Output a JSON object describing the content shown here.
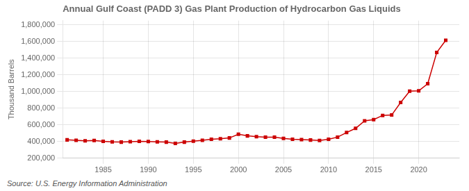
{
  "chart_data": {
    "type": "line",
    "title": "Annual Gulf Coast (PADD 3) Gas Plant Production of Hydrocarbon Gas Liquids",
    "ylabel": "Thousand Barrels",
    "annotation": "Source: U.S. Energy Information Administration",
    "x": [
      1981,
      1982,
      1983,
      1984,
      1985,
      1986,
      1987,
      1988,
      1989,
      1990,
      1991,
      1992,
      1993,
      1994,
      1995,
      1996,
      1997,
      1998,
      1999,
      2000,
      2001,
      2002,
      2003,
      2004,
      2005,
      2006,
      2007,
      2008,
      2009,
      2010,
      2011,
      2012,
      2013,
      2014,
      2015,
      2016,
      2017,
      2018,
      2019,
      2020,
      2021,
      2022,
      2023
    ],
    "values": [
      420000,
      415000,
      408000,
      412000,
      403000,
      396000,
      393000,
      398000,
      403000,
      400000,
      396000,
      393000,
      378000,
      393000,
      405000,
      415000,
      428000,
      433000,
      443000,
      488000,
      468000,
      458000,
      453000,
      453000,
      438000,
      428000,
      423000,
      418000,
      413000,
      428000,
      453000,
      508000,
      558000,
      648000,
      663000,
      713000,
      718000,
      868000,
      1003000,
      1008000,
      1093000,
      1468000,
      1613000
    ],
    "color": "#cc0000",
    "marker": "square",
    "xlim": [
      1980.5,
      2024.5
    ],
    "xticks": [
      1985,
      1990,
      1995,
      2000,
      2005,
      2010,
      2015,
      2020
    ],
    "ylim": [
      200000,
      1850000
    ],
    "yticks": [
      {
        "value": 200000,
        "label": "200,000"
      },
      {
        "value": 400000,
        "label": "400,000"
      },
      {
        "value": 600000,
        "label": "600,000"
      },
      {
        "value": 800000,
        "label": "800,000"
      },
      {
        "value": 1000000,
        "label": "1,000,000"
      },
      {
        "value": 1200000,
        "label": "1,200,000"
      },
      {
        "value": 1400000,
        "label": "1,400,000"
      },
      {
        "value": 1600000,
        "label": "1,600,000"
      },
      {
        "value": 1800000,
        "label": "1,800,000"
      }
    ],
    "grid": true
  }
}
